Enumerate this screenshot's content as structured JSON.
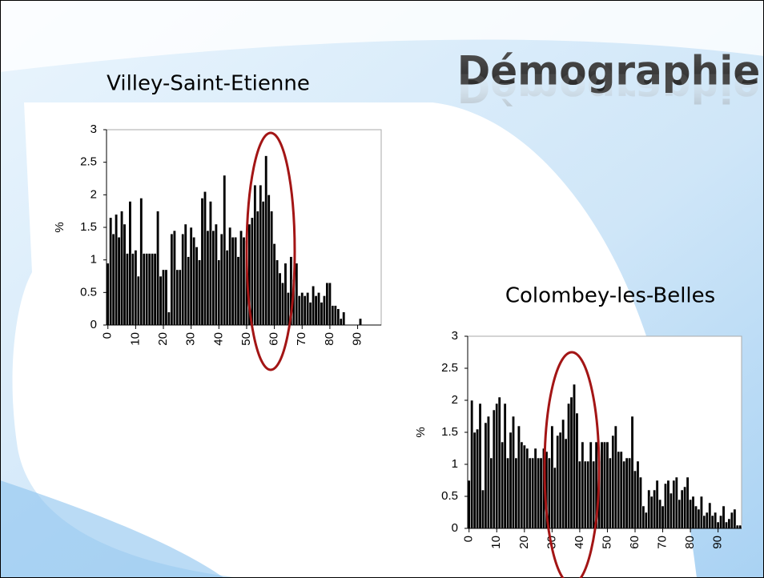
{
  "slide_title": "Démographie",
  "chart_data": [
    {
      "type": "bar",
      "title": "Villey-Saint-Etienne",
      "y_label": "%",
      "color": "#000000",
      "x": [
        0,
        1,
        2,
        3,
        4,
        5,
        6,
        7,
        8,
        9,
        10,
        11,
        12,
        13,
        14,
        15,
        16,
        17,
        18,
        19,
        20,
        21,
        22,
        23,
        24,
        25,
        26,
        27,
        28,
        29,
        30,
        31,
        32,
        33,
        34,
        35,
        36,
        37,
        38,
        39,
        40,
        41,
        42,
        43,
        44,
        45,
        46,
        47,
        48,
        49,
        50,
        51,
        52,
        53,
        54,
        55,
        56,
        57,
        58,
        59,
        60,
        61,
        62,
        63,
        64,
        65,
        66,
        67,
        68,
        69,
        70,
        71,
        72,
        73,
        74,
        75,
        76,
        77,
        78,
        79,
        80,
        81,
        82,
        83,
        84,
        85,
        86,
        87,
        88,
        89,
        90,
        91,
        92,
        93,
        94,
        95,
        96,
        97,
        98
      ],
      "values": [
        0.95,
        1.65,
        1.4,
        1.7,
        1.35,
        1.75,
        1.55,
        1.1,
        1.9,
        1.1,
        1.15,
        0.75,
        1.95,
        1.1,
        1.1,
        1.1,
        1.1,
        1.1,
        1.75,
        0.75,
        0.85,
        0.85,
        0.2,
        1.4,
        1.45,
        0.85,
        0.85,
        1.4,
        1.55,
        1.05,
        1.5,
        1.35,
        1.2,
        1.0,
        1.95,
        2.05,
        1.45,
        1.9,
        1.45,
        1.55,
        1.0,
        1.4,
        2.3,
        1.15,
        1.5,
        1.35,
        1.35,
        1.05,
        1.45,
        1.35,
        1.3,
        1.55,
        1.65,
        2.15,
        1.75,
        2.15,
        1.9,
        2.6,
        2.0,
        1.75,
        1.25,
        1.0,
        0.8,
        0.65,
        0.95,
        0.5,
        1.05,
        0.7,
        0.95,
        0.45,
        0.5,
        0.45,
        0.5,
        0.35,
        0.6,
        0.45,
        0.5,
        0.35,
        0.45,
        0.65,
        0.65,
        0.3,
        0.3,
        0.25,
        0.1,
        0.2,
        0,
        0,
        0,
        0,
        0,
        0.1,
        0,
        0,
        0,
        0,
        0,
        0,
        0
      ],
      "xlim": [
        -0.5,
        98.5
      ],
      "xticks": [
        0,
        10,
        20,
        30,
        40,
        50,
        60,
        70,
        80,
        90
      ],
      "ylim": [
        0,
        3
      ],
      "yticks": [
        0,
        0.5,
        1,
        1.5,
        2,
        2.5,
        3
      ]
    },
    {
      "type": "bar",
      "title": "Colombey-les-Belles",
      "y_label": "%",
      "color": "#000000",
      "x": [
        0,
        1,
        2,
        3,
        4,
        5,
        6,
        7,
        8,
        9,
        10,
        11,
        12,
        13,
        14,
        15,
        16,
        17,
        18,
        19,
        20,
        21,
        22,
        23,
        24,
        25,
        26,
        27,
        28,
        29,
        30,
        31,
        32,
        33,
        34,
        35,
        36,
        37,
        38,
        39,
        40,
        41,
        42,
        43,
        44,
        45,
        46,
        47,
        48,
        49,
        50,
        51,
        52,
        53,
        54,
        55,
        56,
        57,
        58,
        59,
        60,
        61,
        62,
        63,
        64,
        65,
        66,
        67,
        68,
        69,
        70,
        71,
        72,
        73,
        74,
        75,
        76,
        77,
        78,
        79,
        80,
        81,
        82,
        83,
        84,
        85,
        86,
        87,
        88,
        89,
        90,
        91,
        92,
        93,
        94,
        95,
        96,
        97,
        98
      ],
      "values": [
        0.75,
        2.0,
        1.5,
        1.55,
        1.95,
        0.6,
        1.65,
        1.75,
        1.1,
        1.85,
        1.95,
        2.05,
        1.35,
        1.95,
        1.1,
        1.5,
        1.75,
        1.1,
        1.6,
        1.35,
        1.3,
        1.25,
        1.1,
        1.1,
        1.25,
        1.1,
        1.1,
        1.25,
        1.2,
        1.1,
        1.6,
        0.95,
        1.45,
        1.5,
        1.7,
        1.4,
        1.95,
        2.05,
        2.25,
        1.8,
        1.05,
        1.35,
        1.05,
        1.05,
        1.35,
        1.05,
        1.35,
        1.05,
        1.35,
        1.35,
        1.35,
        1.1,
        1.45,
        1.6,
        1.2,
        1.2,
        1.05,
        1.1,
        1.1,
        1.75,
        0.9,
        1.05,
        0.8,
        0.35,
        0.25,
        0.6,
        0.5,
        0.6,
        0.75,
        0.45,
        0.35,
        0.7,
        0.75,
        0.55,
        0.75,
        0.8,
        0.45,
        0.6,
        0.65,
        0.8,
        0.45,
        0.5,
        0.35,
        0.3,
        0.5,
        0.2,
        0.25,
        0.4,
        0.2,
        0.25,
        0.1,
        0.2,
        0.35,
        0.1,
        0.15,
        0.25,
        0.3,
        0.05,
        0.05
      ],
      "xlim": [
        -0.5,
        98.5
      ],
      "xticks": [
        0,
        10,
        20,
        30,
        40,
        50,
        60,
        70,
        80,
        90
      ],
      "ylim": [
        0,
        3
      ],
      "yticks": [
        0,
        0.5,
        1,
        1.5,
        2,
        2.5,
        3
      ]
    }
  ]
}
